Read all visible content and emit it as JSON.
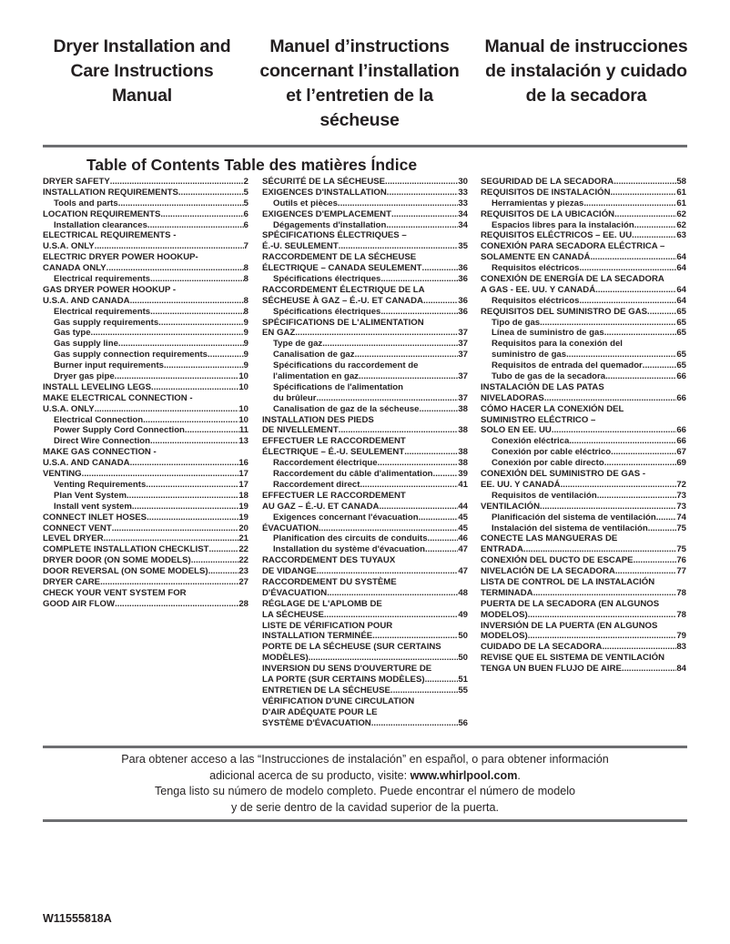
{
  "titles": {
    "en": [
      "Dryer Installation and",
      "Care Instructions",
      "Manual"
    ],
    "fr": [
      "Manuel d’instructions",
      "concernant l’installation",
      "et l’entretien de la",
      "sécheuse"
    ],
    "es": [
      "Manual de instrucciones",
      "de instalación y cuidado",
      "de la secadora"
    ]
  },
  "toc_title": "Table of Contents Table des matières Índice",
  "toc": {
    "en": [
      [
        "DRYER SAFETY",
        "2",
        0
      ],
      [
        "INSTALLATION REQUIREMENTS",
        "5",
        0
      ],
      [
        "Tools and parts",
        "5",
        1
      ],
      [
        "LOCATION REQUIREMENTS",
        "6",
        0
      ],
      [
        "Installation clearances",
        "6",
        1
      ],
      [
        "ELECTRICAL REQUIREMENTS -",
        null,
        0
      ],
      [
        "U.S.A. ONLY",
        "7",
        0
      ],
      [
        "ELECTRIC DRYER POWER HOOKUP-",
        null,
        0
      ],
      [
        "CANADA ONLY",
        "8",
        0
      ],
      [
        "Electrical requirements",
        "8",
        1
      ],
      [
        "GAS DRYER POWER HOOKUP -",
        null,
        0
      ],
      [
        "U.S.A. AND CANADA",
        "8",
        0
      ],
      [
        "Electrical requirements",
        "8",
        1
      ],
      [
        "Gas supply requirements",
        "9",
        1
      ],
      [
        "Gas type",
        "9",
        1
      ],
      [
        "Gas supply line",
        "9",
        1
      ],
      [
        "Gas supply connection requirements",
        "9",
        1
      ],
      [
        "Burner input requirements",
        "9",
        1
      ],
      [
        "Dryer gas pipe",
        "10",
        1
      ],
      [
        "INSTALL LEVELING LEGS",
        "10",
        0
      ],
      [
        "MAKE ELECTRICAL CONNECTION -",
        null,
        0
      ],
      [
        "U.S.A. ONLY",
        "10",
        0
      ],
      [
        "Electrical Connection",
        "10",
        1
      ],
      [
        "Power Supply Cord Connection",
        "11",
        1
      ],
      [
        "Direct Wire Connection",
        "13",
        1
      ],
      [
        "MAKE GAS CONNECTION -",
        null,
        0
      ],
      [
        "U.S.A. AND CANADA",
        "16",
        0
      ],
      [
        "VENTING",
        "17",
        0
      ],
      [
        "Venting Requirements",
        "17",
        1
      ],
      [
        "Plan Vent System",
        "18",
        1
      ],
      [
        "Install vent system",
        "19",
        1
      ],
      [
        "CONNECT INLET HOSES",
        "19",
        0
      ],
      [
        "CONNECT VENT",
        "20",
        0
      ],
      [
        "LEVEL DRYER",
        "21",
        0
      ],
      [
        "COMPLETE INSTALLATION CHECKLIST",
        "22",
        0
      ],
      [
        "DRYER DOOR (ON SOME MODELS)",
        "22",
        0
      ],
      [
        "DOOR REVERSAL (ON SOME MODELS)",
        "23",
        0
      ],
      [
        "DRYER CARE",
        "27",
        0
      ],
      [
        "CHECK YOUR VENT SYSTEM FOR",
        null,
        0
      ],
      [
        "GOOD AIR FLOW",
        "28",
        0
      ]
    ],
    "fr": [
      [
        "SÉCURITÉ DE LA SÉCHEUSE",
        "30",
        0
      ],
      [
        "EXIGENCES D'INSTALLATION",
        "33",
        0
      ],
      [
        "Outils et pièces",
        "33",
        1
      ],
      [
        "EXIGENCES D'EMPLACEMENT",
        "34",
        0
      ],
      [
        "Dégagements d'installation",
        "34",
        1
      ],
      [
        "SPÉCIFICATIONS ÉLECTRIQUES –",
        null,
        0
      ],
      [
        "É.-U. SEULEMENT",
        "35",
        0
      ],
      [
        "RACCORDEMENT DE LA SÉCHEUSE",
        null,
        0
      ],
      [
        "ÉLECTRIQUE – CANADA SEULEMENT",
        "36",
        0
      ],
      [
        "Spécifications électriques",
        "36",
        1
      ],
      [
        "RACCORDEMENT ÉLECTRIQUE DE LA",
        null,
        0
      ],
      [
        "SÉCHEUSE À GAZ – É.-U. ET CANADA",
        "36",
        0
      ],
      [
        "Spécifications électriques",
        "36",
        1
      ],
      [
        "SPÉCIFICATIONS DE L'ALIMENTATION",
        null,
        0
      ],
      [
        "EN GAZ",
        "37",
        0
      ],
      [
        "Type de gaz",
        "37",
        1
      ],
      [
        "Canalisation de gaz",
        "37",
        1
      ],
      [
        "Spécifications du raccordement de",
        null,
        1
      ],
      [
        "l'alimentation en gaz",
        "37",
        1
      ],
      [
        "Spécifications de l'alimentation",
        null,
        1
      ],
      [
        "du brûleur",
        "37",
        1
      ],
      [
        "Canalisation de gaz de la sécheuse",
        "38",
        1
      ],
      [
        "INSTALLATION DES PIEDS",
        null,
        0
      ],
      [
        "DE NIVELLEMENT",
        "38",
        0
      ],
      [
        "EFFECTUER LE RACCORDEMENT",
        null,
        0
      ],
      [
        "ÉLECTRIQUE – É.-U. SEULEMENT",
        "38",
        0
      ],
      [
        "Raccordement électrique",
        "38",
        1
      ],
      [
        "Raccordement du câble d'alimentation",
        "39",
        1
      ],
      [
        "Raccordement direct",
        "41",
        1
      ],
      [
        "EFFECTUER LE RACCORDEMENT",
        null,
        0
      ],
      [
        "AU GAZ – É.-U. ET CANADA",
        "44",
        0
      ],
      [
        "Exigences concernant l'évacuation",
        "45",
        1
      ],
      [
        "ÉVACUATION",
        "45",
        0
      ],
      [
        "Planification des circuits de conduits",
        "46",
        1
      ],
      [
        "Installation du système d'évacuation",
        "47",
        1
      ],
      [
        "RACCORDEMENT DES TUYAUX",
        null,
        0
      ],
      [
        "DE VIDANGE",
        "47",
        0
      ],
      [
        "RACCORDEMENT DU SYSTÈME",
        null,
        0
      ],
      [
        "D'ÉVACUATION",
        "48",
        0
      ],
      [
        "RÉGLAGE DE L'APLOMB DE",
        null,
        0
      ],
      [
        "LA SÉCHEUSE",
        "49",
        0
      ],
      [
        "LISTE DE VÉRIFICATION POUR",
        null,
        0
      ],
      [
        "INSTALLATION TERMINÉE",
        "50",
        0
      ],
      [
        "PORTE DE LA SÉCHEUSE (SUR CERTAINS",
        null,
        0
      ],
      [
        "MODÈLES)",
        "50",
        0
      ],
      [
        "INVERSION DU SENS D'OUVERTURE DE",
        null,
        0
      ],
      [
        "LA PORTE (SUR CERTAINS MODÈLES)",
        "51",
        0
      ],
      [
        "ENTRETIEN DE LA SÉCHEUSE",
        "55",
        0
      ],
      [
        "VÉRIFICATION D'UNE CIRCULATION",
        null,
        0
      ],
      [
        "D'AIR ADÉQUATE POUR LE",
        null,
        0
      ],
      [
        "SYSTÈME D'ÉVACUATION",
        "56",
        0
      ]
    ],
    "es": [
      [
        "SEGURIDAD DE LA SECADORA",
        "58",
        0
      ],
      [
        "REQUISITOS DE INSTALACIÓN",
        "61",
        0
      ],
      [
        "Herramientas y piezas",
        "61",
        1
      ],
      [
        "REQUISITOS DE LA UBICACIÓN",
        "62",
        0
      ],
      [
        "Espacios libres para la instalación",
        "62",
        1
      ],
      [
        "REQUISITOS ELÉCTRICOS – EE. UU.",
        "63",
        0
      ],
      [
        "CONEXIÓN PARA SECADORA ELÉCTRICA –",
        null,
        0
      ],
      [
        "SOLAMENTE EN CANADÁ",
        "64",
        0
      ],
      [
        "Requisitos eléctricos",
        "64",
        1
      ],
      [
        "CONEXIÓN DE ENERGÍA DE LA SECADORA",
        null,
        0
      ],
      [
        "A GAS - EE. UU. Y CANADÁ",
        "64",
        0
      ],
      [
        "Requisitos eléctricos",
        "64",
        1
      ],
      [
        "REQUISITOS DEL SUMINISTRO DE GAS",
        "65",
        0
      ],
      [
        "Tipo de gas",
        "65",
        1
      ],
      [
        "Línea de suministro de gas",
        "65",
        1
      ],
      [
        "Requisitos para la conexión del",
        null,
        1
      ],
      [
        "suministro de gas",
        "65",
        1
      ],
      [
        "Requisitos de entrada del quemador",
        "65",
        1
      ],
      [
        "Tubo de gas de la secadora",
        "66",
        1
      ],
      [
        "INSTALACIÓN DE LAS PATAS",
        null,
        0
      ],
      [
        "NIVELADORAS",
        "66",
        0
      ],
      [
        "CÓMO HACER LA CONEXIÓN DEL",
        null,
        0
      ],
      [
        "SUMINISTRO ELÉCTRICO –",
        null,
        0
      ],
      [
        "SOLO EN EE. UU.",
        "66",
        0
      ],
      [
        "Conexión eléctrica",
        "66",
        1
      ],
      [
        "Conexión por cable eléctrico",
        "67",
        1
      ],
      [
        "Conexión por cable directo",
        "69",
        1
      ],
      [
        "CONEXIÓN DEL SUMINISTRO DE GAS -",
        null,
        0
      ],
      [
        "EE. UU. Y CANADÁ",
        "72",
        0
      ],
      [
        "Requisitos de ventilación",
        "73",
        1
      ],
      [
        "VENTILACIÓN",
        "73",
        0
      ],
      [
        "Planificación del sistema de ventilación",
        "74",
        1
      ],
      [
        "Instalación del sistema de ventilación",
        "75",
        1
      ],
      [
        "CONECTE LAS MANGUERAS DE",
        null,
        0
      ],
      [
        "ENTRADA",
        "75",
        0
      ],
      [
        "CONEXIÓN DEL DUCTO DE ESCAPE",
        "76",
        0
      ],
      [
        "NIVELACIÓN DE LA SECADORA",
        "77",
        0
      ],
      [
        "LISTA DE CONTROL DE LA INSTALACIÓN",
        null,
        0
      ],
      [
        "TERMINADA",
        "78",
        0
      ],
      [
        "PUERTA DE LA SECADORA (EN ALGUNOS",
        null,
        0
      ],
      [
        "MODELOS)",
        "78",
        0
      ],
      [
        "INVERSIÓN DE LA PUERTA (EN ALGUNOS",
        null,
        0
      ],
      [
        "MODELOS)",
        "79",
        0
      ],
      [
        "CUIDADO DE LA SECADORA",
        "83",
        0
      ],
      [
        "REVISE QUE EL SISTEMA DE VENTILACIÓN",
        null,
        0
      ],
      [
        "TENGA UN BUEN FLUJO DE AIRE",
        "84",
        0
      ]
    ]
  },
  "footer": {
    "line1": "Para obtener acceso a las “Instrucciones de instalación” en español, o para obtener información",
    "line2_pre": "adicional acerca de su producto, visite: ",
    "line2_link": "www.whirlpool.com",
    "line2_post": ".",
    "line3": "Tenga listo su número de modelo completo. Puede encontrar el número de modelo",
    "line4": "y de serie dentro de la cavidad superior de la puerta."
  },
  "model_number": "W11555818A"
}
